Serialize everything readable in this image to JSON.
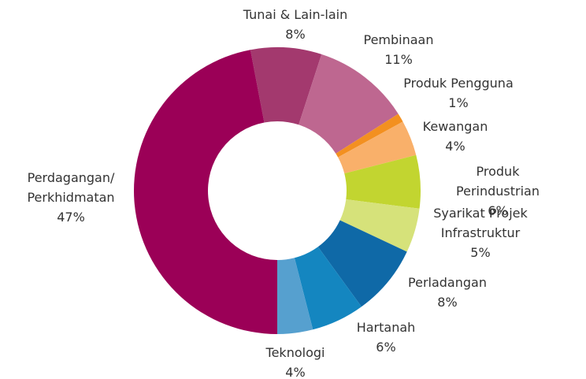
{
  "chart_data": {
    "type": "pie",
    "categories": [
      "Tunai & Lain-lain",
      "Pembinaan",
      "Produk Pengguna",
      "Kewangan",
      "Produk Perindustrian",
      "Syarikat Projek\nInfrastruktur",
      "Perladangan",
      "Hartanah",
      "Teknologi",
      "Perdagangan/\nPerkhidmatan"
    ],
    "values": [
      8,
      11,
      1,
      4,
      6,
      5,
      8,
      6,
      4,
      47
    ],
    "value_labels": [
      "8%",
      "11%",
      "1%",
      "4%",
      "6%",
      "5%",
      "8%",
      "6%",
      "4%",
      "47%"
    ],
    "colors": [
      "#a3396e",
      "#be6790",
      "#f39020",
      "#f9b06a",
      "#c2d530",
      "#d6e27a",
      "#0f69a7",
      "#1486c0",
      "#56a0cf",
      "#9b0057"
    ]
  }
}
